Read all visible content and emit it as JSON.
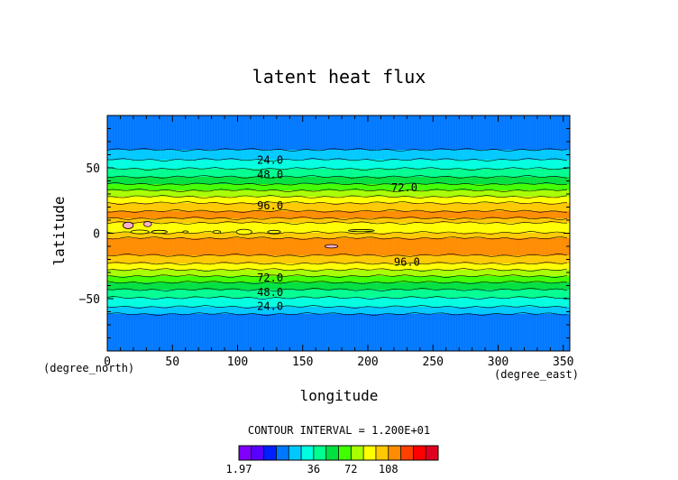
{
  "chart_data": {
    "type": "heatmap",
    "title": "latent heat flux",
    "xlabel": "longitude",
    "ylabel": "latitude",
    "x_unit": "(degree_east)",
    "y_unit": "(degree_north)",
    "xlim": [
      0,
      355
    ],
    "ylim": [
      -90,
      90
    ],
    "x_ticks": [
      0,
      50,
      100,
      150,
      200,
      250,
      300,
      350
    ],
    "y_ticks": [
      -50,
      0,
      50
    ],
    "contour_interval_text": "CONTOUR INTERVAL = 1.200E+01",
    "contour_interval": 12,
    "colorbar": {
      "min": 1.97,
      "max": 120,
      "tick_labels": [
        "1.97",
        "36",
        "72",
        "108"
      ],
      "tick_values": [
        1.97,
        36,
        72,
        108
      ],
      "colors": [
        "#7f00ff",
        "#5a00ff",
        "#0020ff",
        "#0078ff",
        "#00c8ff",
        "#00ffe0",
        "#00ff90",
        "#00e040",
        "#40ff00",
        "#a8ff00",
        "#ffff00",
        "#ffc800",
        "#ff8c00",
        "#ff4000",
        "#ff0000",
        "#e00020"
      ]
    },
    "contour_labels": [
      {
        "text": "24.0",
        "lon": 125,
        "lat": 56
      },
      {
        "text": "48.0",
        "lon": 125,
        "lat": 45
      },
      {
        "text": "72.0",
        "lon": 228,
        "lat": 35
      },
      {
        "text": "96.0",
        "lon": 125,
        "lat": 21
      },
      {
        "text": "96.0",
        "lon": 230,
        "lat": -22
      },
      {
        "text": "72.0",
        "lon": 125,
        "lat": -34
      },
      {
        "text": "48.0",
        "lon": 125,
        "lat": -45
      },
      {
        "text": "24.0",
        "lon": 125,
        "lat": -56
      }
    ],
    "zonal_profile": {
      "lat": [
        -90,
        -70,
        -65,
        -60,
        -55,
        -50,
        -45,
        -40,
        -35,
        -30,
        -25,
        -20,
        -15,
        -5,
        0,
        5,
        12,
        15,
        20,
        25,
        30,
        35,
        40,
        45,
        50,
        55,
        60,
        65,
        70,
        90
      ],
      "value": [
        1,
        1,
        1,
        18,
        26,
        34,
        44,
        55,
        67,
        79,
        91,
        104,
        111,
        111,
        96,
        84,
        111,
        111,
        104,
        91,
        79,
        67,
        55,
        44,
        34,
        26,
        18,
        10,
        1,
        1
      ]
    }
  }
}
